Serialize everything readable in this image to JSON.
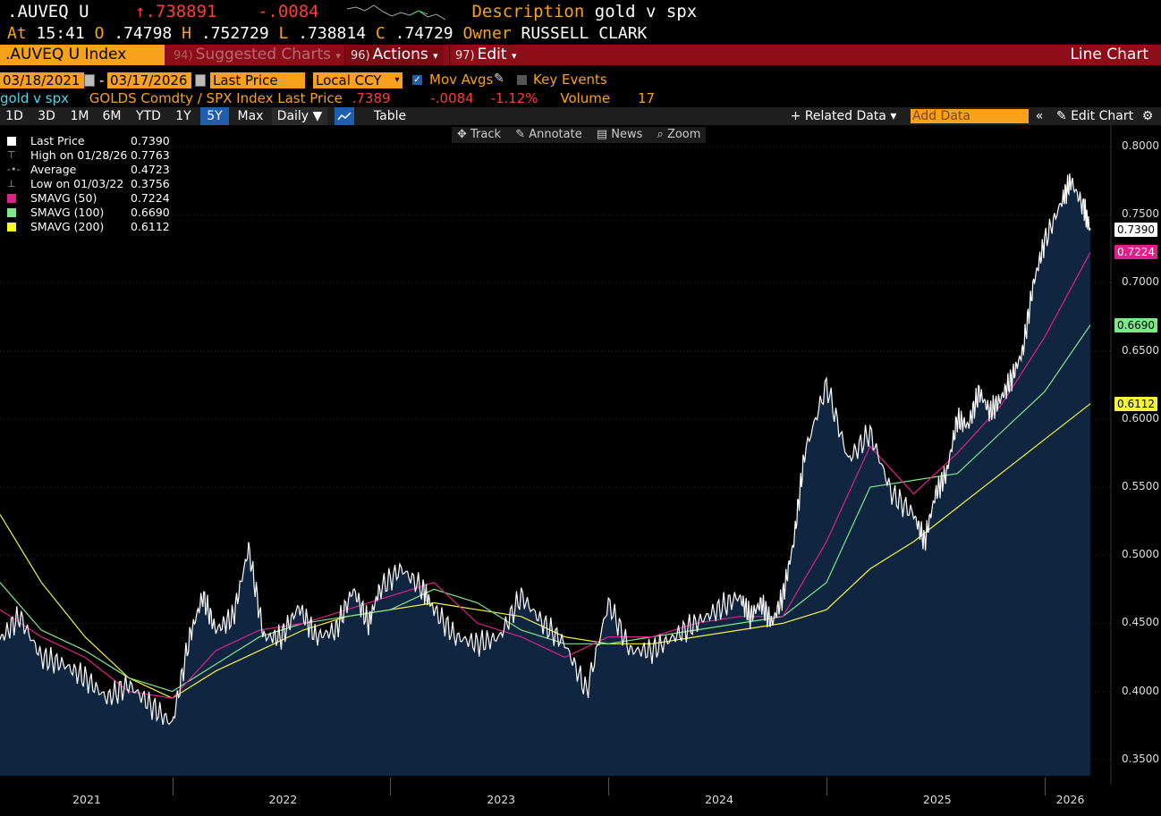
{
  "header": {
    "ticker": ".AUVEQ U",
    "last": "↑.738891",
    "change": "-.0084",
    "desc_label": "Description",
    "desc_value": "gold v spx",
    "at_label": "At",
    "time": "15:41",
    "o_label": "O",
    "open": ".74798",
    "h_label": "H",
    "high": ".752729",
    "l_label": "L",
    "low": ".738814",
    "c_label": "C",
    "close": ".74729",
    "owner_label": "Owner",
    "owner": "RUSSELL CLARK"
  },
  "function_bar": {
    "security": ".AUVEQ U Index",
    "suggested_num": "94)",
    "suggested": "Suggested Charts",
    "actions_num": "96)",
    "actions": "Actions",
    "edit_num": "97)",
    "edit": "Edit",
    "chart_type": "Line Chart"
  },
  "controls": {
    "start_date": "03/18/2021",
    "end_date": "03/17/2026",
    "date_sep": "-",
    "field": "Last Price",
    "currency": "Local CCY",
    "mov_avgs": "Mov Avgs",
    "key_events": "Key Events"
  },
  "series_row": {
    "name": "gold v spx",
    "definition": "GOLDS Comdty / SPX Index Last Price",
    "price": ".7389",
    "change": "-.0084",
    "pct": "-1.12%",
    "volume_label": "Volume",
    "volume": "17"
  },
  "range_bar": {
    "buttons": [
      "1D",
      "3D",
      "1M",
      "6M",
      "YTD",
      "1Y",
      "5Y",
      "Max"
    ],
    "selected": "5Y",
    "period": "Daily ▼",
    "table": "Table",
    "related": "+ Related Data ▾",
    "add_data": "Add Data",
    "edit_chart": "Edit Chart"
  },
  "tools": {
    "track": "✥ Track",
    "annotate": "✎ Annotate",
    "news": "▤ News",
    "zoom": "⌕ Zoom"
  },
  "legend": [
    {
      "label": "Last Price",
      "value": "0.7390",
      "color": "#ffffff"
    },
    {
      "label": "High on 01/28/26",
      "value": "0.7763",
      "color": "#999999"
    },
    {
      "label": "Average",
      "value": "0.4723",
      "color": "#999999"
    },
    {
      "label": "Low on 01/03/22",
      "value": "0.3756",
      "color": "#999999"
    },
    {
      "label": "SMAVG (50)",
      "value": "0.7224",
      "color": "#e0208a"
    },
    {
      "label": "SMAVG (100)",
      "value": "0.6690",
      "color": "#7ee88a"
    },
    {
      "label": "SMAVG (200)",
      "value": "0.6112",
      "color": "#f5f53a"
    }
  ],
  "colors": {
    "accent": "#f7a11c",
    "bar_red": "#8d0e18",
    "area_fill": "#0f2540",
    "price": "#ffffff",
    "sma50": "#e0208a",
    "sma100": "#7ee88a",
    "sma200": "#f5f53a"
  },
  "chart_data": {
    "type": "line",
    "yticks": [
      "0.8000",
      "0.7500",
      "0.7000",
      "0.6500",
      "0.6000",
      "0.5500",
      "0.5000",
      "0.4500",
      "0.4000",
      "0.3500"
    ],
    "ylim": [
      0.35,
      0.81
    ],
    "xticks": [
      "2021",
      "2022",
      "2023",
      "2024",
      "2025",
      "2026"
    ],
    "badges": {
      "last": "0.7390",
      "sma50": "0.7224",
      "sma100": "0.6690",
      "sma200": "0.6112"
    },
    "series": [
      {
        "name": "Last Price",
        "x": [
          2021.21,
          2021.3,
          2021.4,
          2021.5,
          2021.6,
          2021.7,
          2021.8,
          2021.9,
          2022.0,
          2022.08,
          2022.14,
          2022.2,
          2022.28,
          2022.35,
          2022.42,
          2022.5,
          2022.58,
          2022.66,
          2022.75,
          2022.83,
          2022.9,
          2022.95,
          2023.05,
          2023.15,
          2023.2,
          2023.3,
          2023.4,
          2023.5,
          2023.6,
          2023.7,
          2023.8,
          2023.9,
          2024.0,
          2024.1,
          2024.2,
          2024.3,
          2024.4,
          2024.5,
          2024.6,
          2024.65,
          2024.7,
          2024.75,
          2024.8,
          2024.85,
          2024.9,
          2025.0,
          2025.1,
          2025.2,
          2025.3,
          2025.4,
          2025.45,
          2025.5,
          2025.55,
          2025.6,
          2025.65,
          2025.7,
          2025.75,
          2025.8,
          2025.85,
          2025.9,
          2025.95,
          2026.0,
          2026.08,
          2026.12,
          2026.18,
          2026.21
        ],
        "values": [
          0.438,
          0.455,
          0.425,
          0.42,
          0.41,
          0.395,
          0.405,
          0.39,
          0.376,
          0.44,
          0.47,
          0.445,
          0.455,
          0.505,
          0.44,
          0.44,
          0.462,
          0.44,
          0.445,
          0.475,
          0.45,
          0.475,
          0.49,
          0.475,
          0.46,
          0.44,
          0.435,
          0.44,
          0.47,
          0.45,
          0.435,
          0.4,
          0.465,
          0.43,
          0.43,
          0.44,
          0.45,
          0.46,
          0.47,
          0.455,
          0.465,
          0.45,
          0.47,
          0.51,
          0.575,
          0.625,
          0.57,
          0.59,
          0.545,
          0.53,
          0.51,
          0.545,
          0.56,
          0.6,
          0.595,
          0.62,
          0.605,
          0.615,
          0.63,
          0.65,
          0.7,
          0.73,
          0.76,
          0.775,
          0.755,
          0.739
        ]
      },
      {
        "name": "SMAVG (50)",
        "x": [
          2021.21,
          2021.4,
          2021.6,
          2021.8,
          2022.0,
          2022.2,
          2022.4,
          2022.6,
          2022.8,
          2023.0,
          2023.2,
          2023.4,
          2023.6,
          2023.8,
          2024.0,
          2024.2,
          2024.4,
          2024.6,
          2024.8,
          2025.0,
          2025.2,
          2025.4,
          2025.6,
          2025.8,
          2026.0,
          2026.21
        ],
        "values": [
          0.46,
          0.44,
          0.425,
          0.4,
          0.395,
          0.43,
          0.445,
          0.45,
          0.46,
          0.47,
          0.48,
          0.45,
          0.44,
          0.425,
          0.44,
          0.44,
          0.45,
          0.455,
          0.455,
          0.51,
          0.58,
          0.545,
          0.575,
          0.61,
          0.66,
          0.7224
        ]
      },
      {
        "name": "SMAVG (100)",
        "x": [
          2021.21,
          2021.4,
          2021.6,
          2021.8,
          2022.0,
          2022.2,
          2022.4,
          2022.6,
          2022.8,
          2023.0,
          2023.2,
          2023.4,
          2023.6,
          2023.8,
          2024.0,
          2024.2,
          2024.4,
          2024.6,
          2024.8,
          2025.0,
          2025.2,
          2025.4,
          2025.6,
          2025.8,
          2026.0,
          2026.21
        ],
        "values": [
          0.48,
          0.445,
          0.43,
          0.41,
          0.4,
          0.42,
          0.44,
          0.45,
          0.455,
          0.46,
          0.475,
          0.465,
          0.445,
          0.435,
          0.435,
          0.44,
          0.445,
          0.45,
          0.455,
          0.48,
          0.55,
          0.555,
          0.56,
          0.59,
          0.62,
          0.669
        ]
      },
      {
        "name": "SMAVG (200)",
        "x": [
          2021.21,
          2021.4,
          2021.6,
          2021.8,
          2022.0,
          2022.2,
          2022.4,
          2022.6,
          2022.8,
          2023.0,
          2023.2,
          2023.4,
          2023.6,
          2023.8,
          2024.0,
          2024.2,
          2024.4,
          2024.6,
          2024.8,
          2025.0,
          2025.2,
          2025.4,
          2025.6,
          2025.8,
          2026.0,
          2026.21
        ],
        "values": [
          0.53,
          0.48,
          0.44,
          0.41,
          0.395,
          0.415,
          0.43,
          0.445,
          0.455,
          0.46,
          0.465,
          0.46,
          0.455,
          0.44,
          0.435,
          0.435,
          0.44,
          0.445,
          0.45,
          0.46,
          0.49,
          0.51,
          0.535,
          0.56,
          0.585,
          0.6112
        ]
      }
    ]
  }
}
